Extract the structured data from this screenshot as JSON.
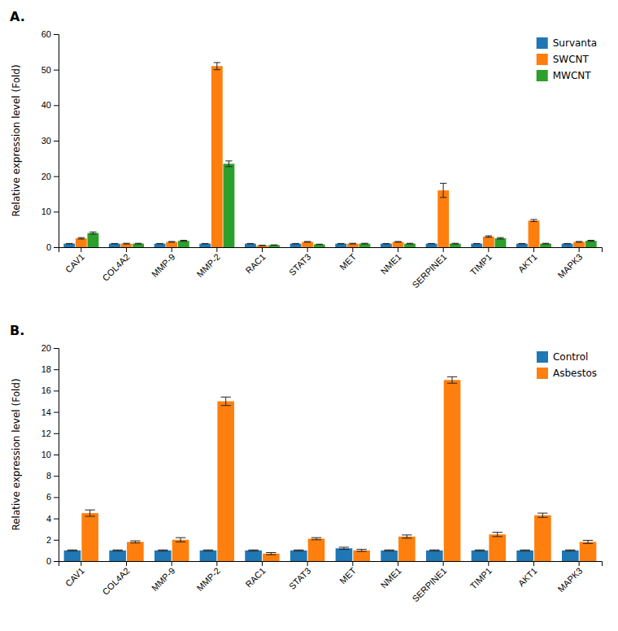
{
  "chart_data": [
    {
      "type": "bar",
      "title": "A.",
      "ylabel": "Relative expression level (Fold)",
      "categories": [
        "CAV1",
        "COL4A2",
        "MMP-9",
        "MMP-2",
        "RAC1",
        "STAT3",
        "MET",
        "NME1",
        "SERPINE1",
        "TIMP1",
        "AKT1",
        "MAPK3"
      ],
      "series": [
        {
          "name": "Survanta",
          "values": [
            1.0,
            1.0,
            1.0,
            1.0,
            1.0,
            1.0,
            1.0,
            1.0,
            1.0,
            1.0,
            1.0,
            1.0
          ],
          "errors": [
            0.05,
            0.05,
            0.05,
            0.05,
            0.05,
            0.05,
            0.05,
            0.05,
            0.05,
            0.05,
            0.05,
            0.05
          ]
        },
        {
          "name": "SWCNT",
          "values": [
            2.5,
            1.0,
            1.5,
            51.0,
            0.5,
            1.5,
            1.0,
            1.5,
            16.0,
            3.0,
            7.5,
            1.5
          ],
          "errors": [
            0.2,
            0.1,
            0.1,
            1.0,
            0.05,
            0.1,
            0.1,
            0.1,
            2.0,
            0.2,
            0.3,
            0.1
          ]
        },
        {
          "name": "MWCNT",
          "values": [
            4.0,
            1.0,
            1.8,
            23.5,
            0.6,
            0.8,
            1.0,
            1.0,
            1.0,
            2.5,
            1.0,
            1.8
          ],
          "errors": [
            0.3,
            0.1,
            0.15,
            0.8,
            0.05,
            0.05,
            0.1,
            0.1,
            0.1,
            0.2,
            0.1,
            0.15
          ]
        }
      ],
      "ylim": [
        0,
        60
      ],
      "yticks": [
        0,
        10,
        20,
        30,
        40,
        50,
        60
      ],
      "grid": false,
      "legend": "upper-right"
    },
    {
      "type": "bar",
      "title": "B.",
      "ylabel": "Relative expression level (Fold)",
      "categories": [
        "CAV1",
        "COL4A2",
        "MMP-9",
        "MMP-2",
        "RAC1",
        "STAT3",
        "MET",
        "NME1",
        "SERPINE1",
        "TIMP1",
        "AKT1",
        "MAPK3"
      ],
      "series": [
        {
          "name": "Control",
          "values": [
            1.0,
            1.0,
            1.0,
            1.0,
            1.0,
            1.0,
            1.2,
            1.0,
            1.0,
            1.0,
            1.0,
            1.0
          ],
          "errors": [
            0.05,
            0.05,
            0.05,
            0.05,
            0.05,
            0.05,
            0.1,
            0.05,
            0.05,
            0.05,
            0.05,
            0.05
          ]
        },
        {
          "name": "Asbestos",
          "values": [
            4.5,
            1.8,
            2.0,
            15.0,
            0.7,
            2.1,
            1.0,
            2.3,
            17.0,
            2.5,
            4.3,
            1.8
          ],
          "errors": [
            0.3,
            0.1,
            0.2,
            0.4,
            0.1,
            0.1,
            0.1,
            0.15,
            0.3,
            0.2,
            0.2,
            0.15
          ]
        }
      ],
      "ylim": [
        0,
        20
      ],
      "yticks": [
        0,
        2,
        4,
        6,
        8,
        10,
        12,
        14,
        16,
        18,
        20
      ],
      "grid": false,
      "legend": "upper-right"
    }
  ]
}
